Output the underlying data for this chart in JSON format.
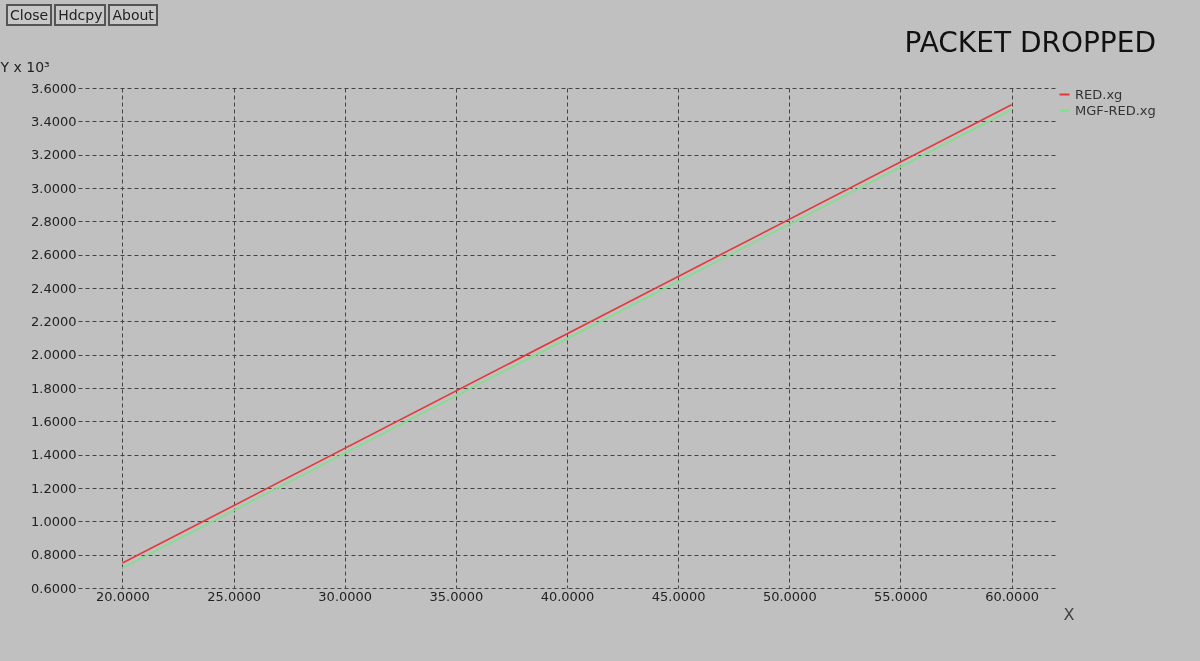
{
  "chart_data": {
    "type": "line",
    "title": "PACKET DROPPED",
    "ylabel": "Y x 10³",
    "xlabel": "X",
    "annotations": [
      "Close",
      "Hdcpy",
      "About"
    ],
    "x": [
      20,
      60
    ],
    "series": [
      {
        "name": "RED.xg",
        "color": "#e03a3a",
        "values": [
          0.75,
          3.5
        ]
      },
      {
        "name": "MGF-RED.xg",
        "color": "#7fe08a",
        "values": [
          0.72,
          3.47
        ]
      }
    ],
    "xlim": [
      18,
      62
    ],
    "ylim": [
      0.6,
      3.6
    ],
    "xticks": [
      {
        "value": 20,
        "label": "20.0000"
      },
      {
        "value": 25,
        "label": "25.0000"
      },
      {
        "value": 30,
        "label": "30.0000"
      },
      {
        "value": 35,
        "label": "35.0000"
      },
      {
        "value": 40,
        "label": "40.0000"
      },
      {
        "value": 45,
        "label": "45.0000"
      },
      {
        "value": 50,
        "label": "50.0000"
      },
      {
        "value": 55,
        "label": "55.0000"
      },
      {
        "value": 60,
        "label": "60.0000"
      }
    ],
    "yticks": [
      {
        "value": 0.6,
        "label": "0.6000"
      },
      {
        "value": 0.8,
        "label": "0.8000"
      },
      {
        "value": 1.0,
        "label": "1.0000"
      },
      {
        "value": 1.2,
        "label": "1.2000"
      },
      {
        "value": 1.4,
        "label": "1.4000"
      },
      {
        "value": 1.6,
        "label": "1.6000"
      },
      {
        "value": 1.8,
        "label": "1.8000"
      },
      {
        "value": 2.0,
        "label": "2.0000"
      },
      {
        "value": 2.2,
        "label": "2.2000"
      },
      {
        "value": 2.4,
        "label": "2.4000"
      },
      {
        "value": 2.6,
        "label": "2.6000"
      },
      {
        "value": 2.8,
        "label": "2.8000"
      },
      {
        "value": 3.0,
        "label": "3.0000"
      },
      {
        "value": 3.2,
        "label": "3.2000"
      },
      {
        "value": 3.4,
        "label": "3.4000"
      },
      {
        "value": 3.6,
        "label": "3.6000"
      }
    ],
    "grid": true,
    "legend": "top right",
    "line_style": "solid",
    "marker": "none"
  }
}
